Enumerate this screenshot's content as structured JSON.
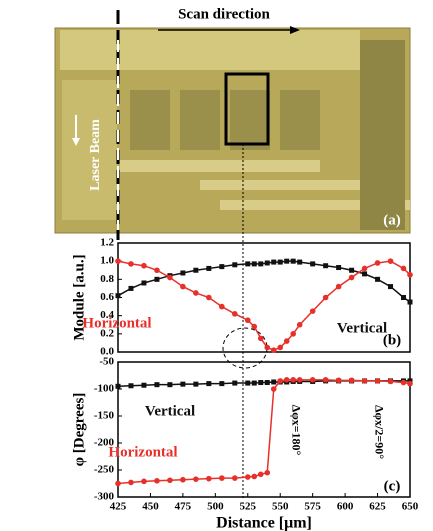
{
  "image": {
    "title": "Scan direction",
    "label": "Laser Beam",
    "panel": "(a)"
  },
  "chart_data": [
    {
      "type": "line",
      "ylabel": "Module [a.u.]",
      "panel": "(b)",
      "x": [
        425,
        435,
        445,
        455,
        465,
        475,
        485,
        495,
        505,
        515,
        525,
        530,
        535,
        540,
        545,
        550,
        555,
        560,
        565,
        575,
        585,
        595,
        605,
        615,
        625,
        635,
        645,
        650
      ],
      "xlim": [
        425,
        650
      ],
      "ylim": [
        0,
        1.2
      ],
      "yticks": [
        {
          "value": 0,
          "label": "0.0"
        },
        0.2,
        0.4,
        0.6,
        0.8,
        {
          "value": 1,
          "label": "1.0"
        },
        1.2
      ],
      "series": [
        {
          "name": "Vertical",
          "color": "#111111",
          "marker": "square",
          "values": [
            0.62,
            0.7,
            0.76,
            0.8,
            0.84,
            0.87,
            0.9,
            0.92,
            0.94,
            0.96,
            0.97,
            0.97,
            0.97,
            0.98,
            0.99,
            0.99,
            1.0,
            1.0,
            0.99,
            0.97,
            0.95,
            0.93,
            0.9,
            0.86,
            0.8,
            0.72,
            0.6,
            0.55
          ]
        },
        {
          "name": "Horizontal",
          "color": "#e8302a",
          "marker": "circle",
          "values": [
            1.0,
            0.97,
            0.95,
            0.9,
            0.82,
            0.72,
            0.65,
            0.6,
            0.5,
            0.42,
            0.35,
            0.28,
            0.15,
            0.05,
            0.02,
            0.05,
            0.12,
            0.2,
            0.3,
            0.45,
            0.6,
            0.72,
            0.82,
            0.92,
            0.98,
            1.0,
            0.92,
            0.85
          ]
        }
      ]
    },
    {
      "type": "line",
      "ylabel": "φ [Degrees]",
      "xlabel": "Distance [μm]",
      "panel": "(c)",
      "annotations": [
        "Δφx=180°",
        "Δφx/2=90°"
      ],
      "x": [
        425,
        435,
        445,
        455,
        465,
        475,
        485,
        495,
        505,
        515,
        525,
        530,
        535,
        540,
        545,
        550,
        555,
        560,
        565,
        575,
        585,
        595,
        605,
        615,
        625,
        635,
        645,
        650
      ],
      "xlim": [
        425,
        650
      ],
      "ylim": [
        -300,
        -50
      ],
      "xticks": [
        425,
        450,
        475,
        500,
        525,
        550,
        575,
        600,
        625,
        650
      ],
      "yticks": [
        -300,
        -250,
        -200,
        -150,
        -100,
        -50
      ],
      "series": [
        {
          "name": "Vertical",
          "color": "#111111",
          "marker": "square",
          "values": [
            -95,
            -94,
            -93,
            -92,
            -92,
            -91,
            -91,
            -90,
            -90,
            -89,
            -89,
            -89,
            -88,
            -88,
            -87,
            -87,
            -87,
            -86,
            -86,
            -86,
            -85,
            -85,
            -85,
            -85,
            -85,
            -85,
            -85,
            -85
          ]
        },
        {
          "name": "Horizontal",
          "color": "#e8302a",
          "marker": "circle",
          "values": [
            -275,
            -273,
            -271,
            -270,
            -269,
            -268,
            -267,
            -266,
            -265,
            -265,
            -263,
            -262,
            -258,
            -255,
            -100,
            -85,
            -83,
            -83,
            -83,
            -83,
            -83,
            -84,
            -84,
            -85,
            -85,
            -86,
            -88,
            -90
          ]
        }
      ]
    }
  ]
}
